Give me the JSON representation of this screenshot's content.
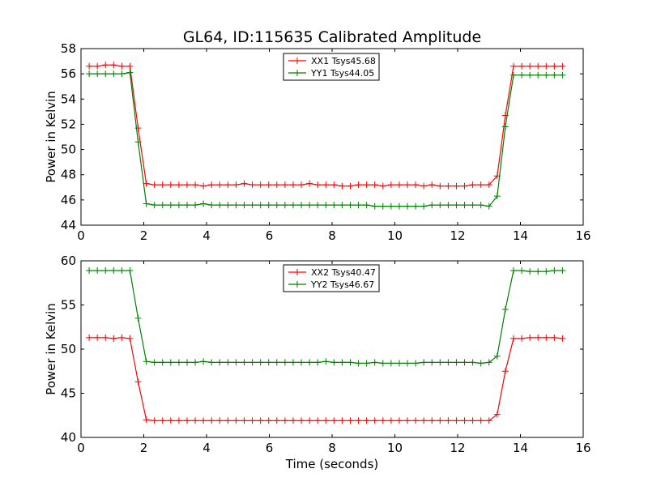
{
  "figure": {
    "title": "GL64, ID:115635 Calibrated Amplitude",
    "xlabel": "Time (seconds)"
  },
  "chart_data": [
    {
      "type": "line",
      "title": "GL64, ID:115635 Calibrated Amplitude",
      "xlabel": "",
      "ylabel": "Power in Kelvin",
      "xlim": [
        0,
        16
      ],
      "ylim": [
        44,
        58
      ],
      "xticks": [
        0,
        2,
        4,
        6,
        8,
        10,
        12,
        14,
        16
      ],
      "yticks": [
        44,
        46,
        48,
        50,
        52,
        54,
        56,
        58
      ],
      "grid": false,
      "legend_position": "top-center",
      "x": [
        0.26,
        0.52,
        0.78,
        1.04,
        1.3,
        1.56,
        1.82,
        2.08,
        2.34,
        2.6,
        2.86,
        3.12,
        3.38,
        3.64,
        3.9,
        4.16,
        4.42,
        4.68,
        4.94,
        5.2,
        5.46,
        5.72,
        5.98,
        6.24,
        6.5,
        6.76,
        7.02,
        7.28,
        7.54,
        7.8,
        8.06,
        8.32,
        8.58,
        8.84,
        9.1,
        9.36,
        9.62,
        9.88,
        10.14,
        10.4,
        10.66,
        10.92,
        11.18,
        11.44,
        11.7,
        11.96,
        12.22,
        12.48,
        12.74,
        13.0,
        13.26,
        13.52,
        13.78,
        14.04,
        14.3,
        14.56,
        14.82,
        15.08,
        15.34
      ],
      "series": [
        {
          "name": "XX1 Tsys45.68",
          "color": "#ff0000",
          "values": [
            56.6,
            56.6,
            56.7,
            56.7,
            56.6,
            56.6,
            51.7,
            47.3,
            47.2,
            47.2,
            47.2,
            47.2,
            47.2,
            47.2,
            47.1,
            47.2,
            47.2,
            47.2,
            47.2,
            47.3,
            47.2,
            47.2,
            47.2,
            47.2,
            47.2,
            47.2,
            47.2,
            47.3,
            47.2,
            47.2,
            47.2,
            47.1,
            47.1,
            47.2,
            47.2,
            47.2,
            47.1,
            47.2,
            47.2,
            47.2,
            47.2,
            47.1,
            47.2,
            47.1,
            47.1,
            47.1,
            47.1,
            47.2,
            47.2,
            47.2,
            47.9,
            52.7,
            56.6,
            56.6,
            56.6,
            56.6,
            56.6,
            56.6,
            56.6
          ]
        },
        {
          "name": "YY1 Tsys44.05",
          "color": "#008000",
          "values": [
            56.0,
            56.0,
            56.0,
            56.0,
            56.0,
            56.1,
            50.6,
            45.7,
            45.6,
            45.6,
            45.6,
            45.6,
            45.6,
            45.6,
            45.7,
            45.6,
            45.6,
            45.6,
            45.6,
            45.6,
            45.6,
            45.6,
            45.6,
            45.6,
            45.6,
            45.6,
            45.6,
            45.6,
            45.6,
            45.6,
            45.6,
            45.6,
            45.6,
            45.6,
            45.6,
            45.5,
            45.5,
            45.5,
            45.5,
            45.5,
            45.5,
            45.5,
            45.6,
            45.6,
            45.6,
            45.6,
            45.6,
            45.6,
            45.6,
            45.5,
            46.3,
            51.8,
            55.9,
            55.9,
            55.9,
            55.9,
            55.9,
            55.9,
            55.9
          ]
        }
      ]
    },
    {
      "type": "line",
      "title": "",
      "xlabel": "Time (seconds)",
      "ylabel": "Power in Kelvin",
      "xlim": [
        0,
        16
      ],
      "ylim": [
        40,
        60
      ],
      "xticks": [
        0,
        2,
        4,
        6,
        8,
        10,
        12,
        14,
        16
      ],
      "yticks": [
        40,
        45,
        50,
        55,
        60
      ],
      "grid": false,
      "legend_position": "top-center",
      "x": [
        0.26,
        0.52,
        0.78,
        1.04,
        1.3,
        1.56,
        1.82,
        2.08,
        2.34,
        2.6,
        2.86,
        3.12,
        3.38,
        3.64,
        3.9,
        4.16,
        4.42,
        4.68,
        4.94,
        5.2,
        5.46,
        5.72,
        5.98,
        6.24,
        6.5,
        6.76,
        7.02,
        7.28,
        7.54,
        7.8,
        8.06,
        8.32,
        8.58,
        8.84,
        9.1,
        9.36,
        9.62,
        9.88,
        10.14,
        10.4,
        10.66,
        10.92,
        11.18,
        11.44,
        11.7,
        11.96,
        12.22,
        12.48,
        12.74,
        13.0,
        13.26,
        13.52,
        13.78,
        14.04,
        14.3,
        14.56,
        14.82,
        15.08,
        15.34
      ],
      "series": [
        {
          "name": "XX2 Tsys40.47",
          "color": "#ff0000",
          "values": [
            51.3,
            51.3,
            51.3,
            51.2,
            51.3,
            51.2,
            46.3,
            42.0,
            41.9,
            41.9,
            41.9,
            41.9,
            41.9,
            41.9,
            41.9,
            41.9,
            41.9,
            41.9,
            41.9,
            41.9,
            41.9,
            41.9,
            41.9,
            41.9,
            41.9,
            41.9,
            41.9,
            41.9,
            41.9,
            41.9,
            41.9,
            41.9,
            41.9,
            41.9,
            41.9,
            41.9,
            41.9,
            41.9,
            41.9,
            41.9,
            41.9,
            41.9,
            41.9,
            41.9,
            41.9,
            41.9,
            41.9,
            41.9,
            41.9,
            41.9,
            42.6,
            47.5,
            51.2,
            51.2,
            51.3,
            51.3,
            51.3,
            51.3,
            51.2
          ]
        },
        {
          "name": "YY2 Tsys46.67",
          "color": "#008000",
          "values": [
            58.9,
            58.9,
            58.9,
            58.9,
            58.9,
            58.9,
            53.5,
            48.6,
            48.5,
            48.5,
            48.5,
            48.5,
            48.5,
            48.5,
            48.6,
            48.5,
            48.5,
            48.5,
            48.5,
            48.5,
            48.5,
            48.5,
            48.5,
            48.5,
            48.5,
            48.5,
            48.5,
            48.5,
            48.5,
            48.6,
            48.5,
            48.5,
            48.5,
            48.4,
            48.4,
            48.5,
            48.4,
            48.4,
            48.4,
            48.4,
            48.4,
            48.5,
            48.5,
            48.5,
            48.5,
            48.5,
            48.5,
            48.5,
            48.4,
            48.5,
            49.2,
            54.5,
            58.9,
            58.9,
            58.8,
            58.8,
            58.8,
            58.9,
            58.9
          ]
        }
      ]
    }
  ]
}
